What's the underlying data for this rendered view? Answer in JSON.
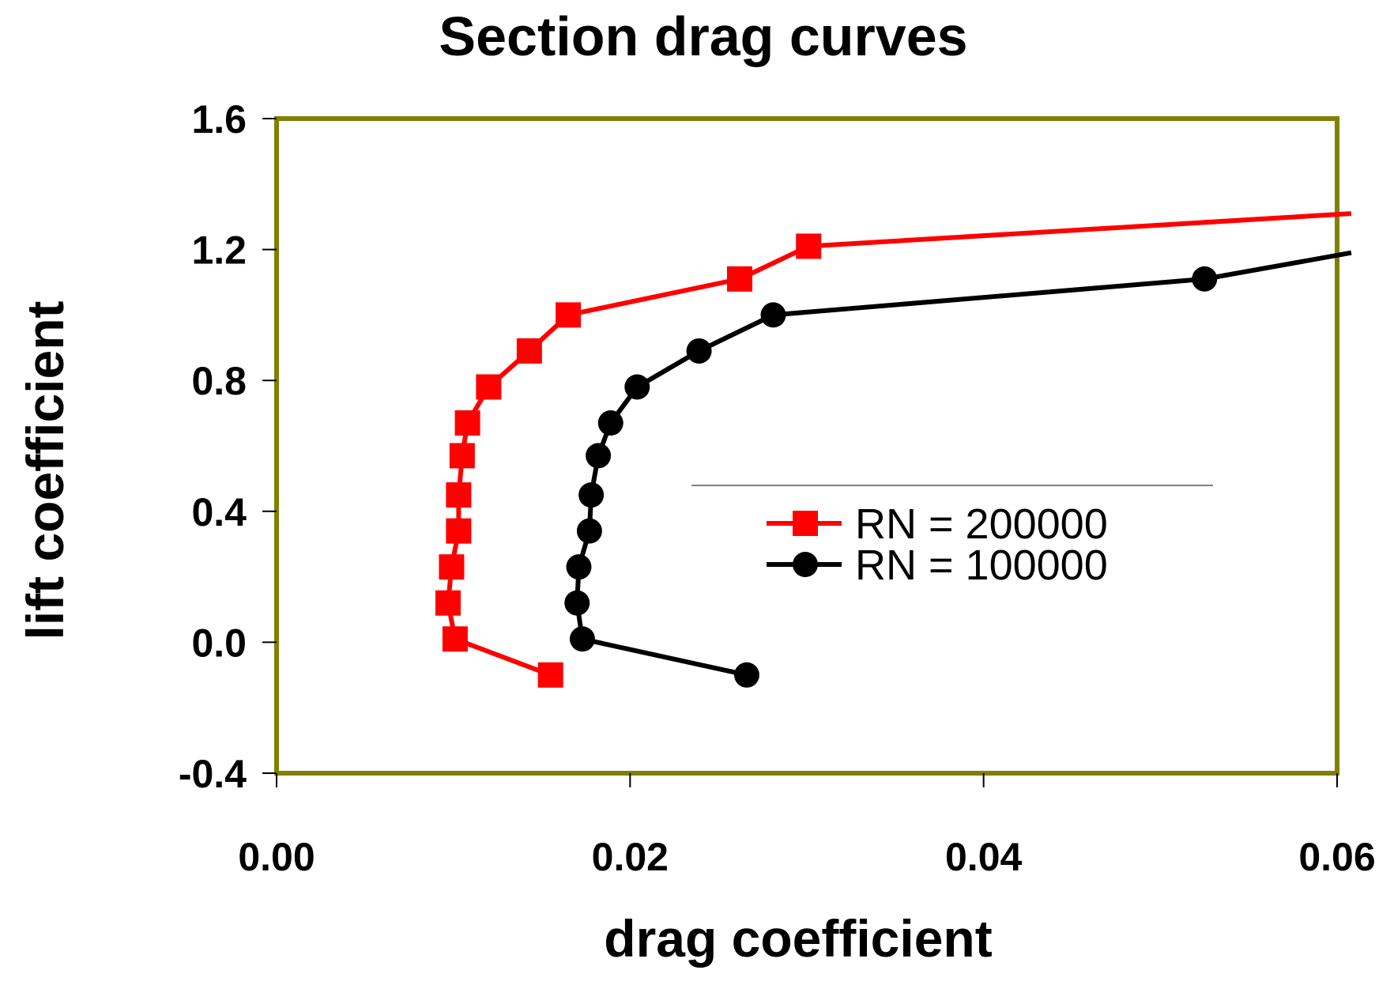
{
  "chart_data": {
    "type": "line",
    "title": "Section drag curves",
    "xlabel": "drag coefficient",
    "ylabel": "lift coefficient",
    "xlim": [
      0,
      0.06
    ],
    "ylim": [
      -0.4,
      1.6
    ],
    "x_ticks": [
      "0.00",
      "0.02",
      "0.04",
      "0.06"
    ],
    "x_tick_values": [
      0,
      0.02,
      0.04,
      0.06
    ],
    "y_ticks": [
      "1.6",
      "1.2",
      "0.8",
      "0.4",
      "0.0",
      "-0.4"
    ],
    "y_tick_values": [
      1.6,
      1.2,
      0.8,
      0.4,
      0.0,
      -0.4
    ],
    "grid": false,
    "legend_position": "center-right",
    "plot_border_color": "#808000",
    "series": [
      {
        "name": "RN = 200000",
        "color": "#ff0000",
        "marker": "square",
        "x": [
          0.0155,
          0.0101,
          0.0097,
          0.0099,
          0.0103,
          0.0103,
          0.0105,
          0.0108,
          0.012,
          0.0143,
          0.0165,
          0.0262,
          0.0301,
          0.0608
        ],
        "y": [
          -0.1,
          0.01,
          0.12,
          0.23,
          0.34,
          0.45,
          0.57,
          0.67,
          0.78,
          0.89,
          1.0,
          1.11,
          1.21,
          1.31
        ]
      },
      {
        "name": "RN = 100000",
        "color": "#000000",
        "marker": "circle",
        "x": [
          0.0266,
          0.0173,
          0.017,
          0.0171,
          0.0177,
          0.0178,
          0.0182,
          0.0189,
          0.0204,
          0.0239,
          0.0281,
          0.0525,
          0.0608
        ],
        "y": [
          -0.1,
          0.01,
          0.12,
          0.23,
          0.34,
          0.45,
          0.57,
          0.67,
          0.78,
          0.89,
          1.0,
          1.11,
          1.19
        ]
      }
    ]
  }
}
